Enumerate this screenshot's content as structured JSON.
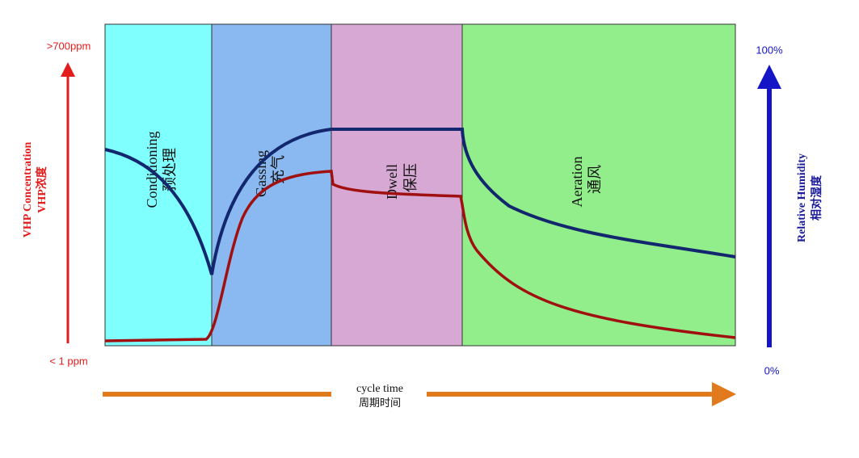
{
  "phases": [
    {
      "label": "Conditioning",
      "sub_label": "预处理"
    },
    {
      "label": "Gassing",
      "sub_label": "充气"
    },
    {
      "label": "Dwell",
      "sub_label": "保压"
    },
    {
      "label": "Aeration",
      "sub_label": "通风"
    }
  ],
  "left_axis": {
    "title": "VHP Concentration",
    "subtitle": "VHP浓度",
    "top_label": ">700ppm",
    "bottom_label": "< 1 ppm"
  },
  "right_axis": {
    "title": "Relative Humidity",
    "subtitle": "相对湿度",
    "top_label": "100%",
    "bottom_label": "0%"
  },
  "x_axis": {
    "title": "cycle time",
    "subtitle": "周期时间"
  }
}
